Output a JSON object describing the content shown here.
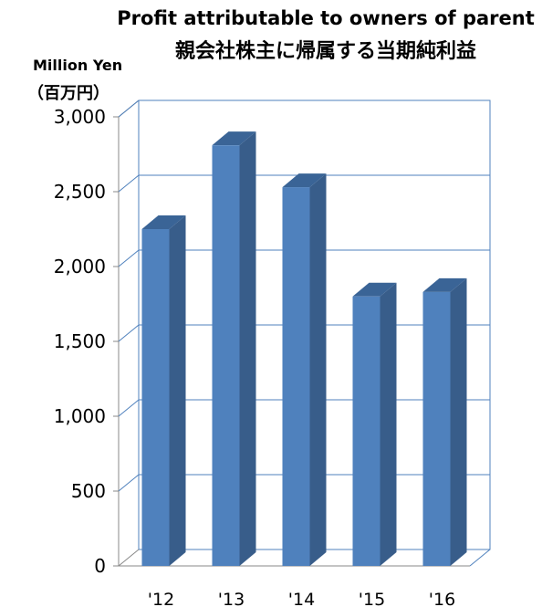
{
  "chart_data": {
    "type": "bar",
    "title": "Profit attributable to owners of parent",
    "subtitle": "親会社株主に帰属する当期純利益",
    "ylabel": "Million Yen",
    "ylabel_secondary": "（百万円）",
    "categories": [
      "'12",
      "'13",
      "'14",
      "'15",
      "'16"
    ],
    "values": [
      2250,
      2810,
      2530,
      1800,
      1830
    ],
    "ylim": [
      0,
      3000
    ],
    "yticks": [
      0,
      500,
      1000,
      1500,
      2000,
      2500,
      3000
    ],
    "ytick_labels": [
      "0",
      "500",
      "1,000",
      "1,500",
      "2,000",
      "2,500",
      "3,000"
    ],
    "grid": true,
    "three_d": true,
    "colors": {
      "front": "#4F81BD",
      "side": "#385D8A",
      "top": "#3A6496",
      "grid": "#4F81BD"
    }
  }
}
